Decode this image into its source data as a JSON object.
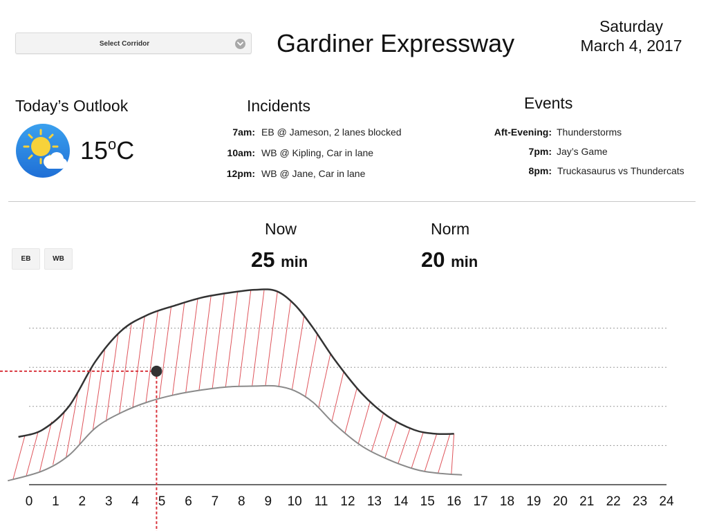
{
  "header": {
    "corridor_select": "Select Corridor",
    "title": "Gardiner Expressway",
    "day": "Saturday",
    "date": "March 4, 2017"
  },
  "outlook": {
    "heading": "Today’s Outlook",
    "icon": "partly-sunny-icon",
    "temp_value": "15",
    "temp_degree": "o",
    "temp_unit": "C"
  },
  "incidents": {
    "heading": "Incidents",
    "items": [
      {
        "time": "7am:",
        "text": "EB @ Jameson, 2 lanes blocked"
      },
      {
        "time": "10am:",
        "text": "WB @ Kipling, Car in lane"
      },
      {
        "time": "12pm:",
        "text": "WB @ Jane, Car in lane"
      }
    ]
  },
  "events": {
    "heading": "Events",
    "items": [
      {
        "time": "Aft-Evening:",
        "text": "Thunderstorms"
      },
      {
        "time": "7pm:",
        "text": "Jay’s Game"
      },
      {
        "time": "8pm:",
        "text": "Truckasaurus vs Thundercats"
      }
    ]
  },
  "direction": {
    "eb": "EB",
    "wb": "WB"
  },
  "metrics": {
    "now_label": "Now",
    "now_value": "25",
    "now_unit": "min",
    "norm_label": "Norm",
    "norm_value": "20",
    "norm_unit": "min"
  },
  "colors": {
    "band": "#d9363e",
    "upper_line": "#333333",
    "lower_line": "#8a8a8a",
    "marker": "#333333"
  },
  "chart_data": {
    "type": "area",
    "x_ticks": [
      0,
      1,
      2,
      3,
      4,
      5,
      6,
      7,
      8,
      9,
      10,
      11,
      12,
      13,
      14,
      15,
      16,
      17,
      18,
      19,
      20,
      21,
      22,
      23,
      24
    ],
    "xlim": [
      0,
      24
    ],
    "ylim": [
      0,
      5
    ],
    "grid": "horizontal dotted",
    "upper_series": {
      "x": [
        -0.4,
        0.5,
        1.5,
        2.5,
        3.5,
        4.5,
        5.5,
        6.5,
        7.5,
        8.5,
        9.3,
        10.0,
        10.7,
        11.5,
        12.5,
        13.5,
        14.5,
        15.3,
        16.0
      ],
      "values": [
        1.22,
        1.4,
        2.0,
        3.15,
        3.95,
        4.35,
        4.58,
        4.78,
        4.9,
        4.98,
        4.95,
        4.6,
        4.0,
        3.2,
        2.35,
        1.75,
        1.4,
        1.3,
        1.3
      ]
    },
    "lower_series": {
      "x": [
        -0.8,
        0.5,
        1.5,
        2.5,
        3.5,
        4.5,
        5.5,
        6.5,
        7.5,
        8.5,
        9.3,
        10.0,
        10.7,
        11.5,
        12.5,
        13.5,
        14.5,
        15.3,
        16.3
      ],
      "values": [
        0.1,
        0.35,
        0.75,
        1.45,
        1.85,
        2.12,
        2.3,
        2.42,
        2.5,
        2.52,
        2.52,
        2.4,
        2.1,
        1.55,
        1.0,
        0.65,
        0.4,
        0.3,
        0.25
      ]
    },
    "marker": {
      "x": 4.8,
      "y": 2.9
    }
  }
}
